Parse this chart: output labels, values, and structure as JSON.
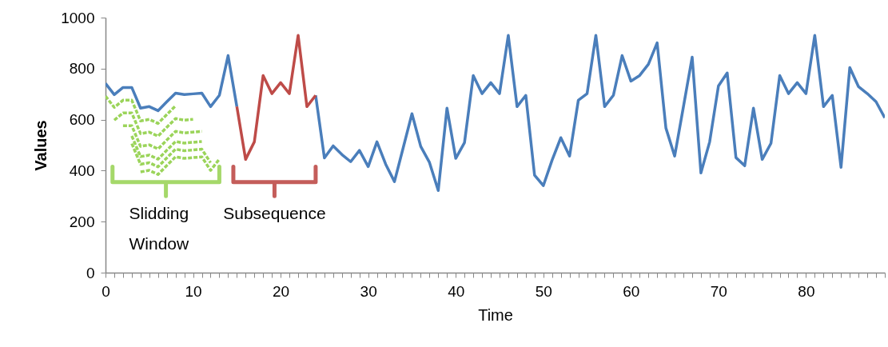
{
  "chart_data": {
    "type": "line",
    "xlabel": "Time",
    "ylabel": "Values",
    "x": [
      0,
      1,
      2,
      3,
      4,
      5,
      6,
      7,
      8,
      9,
      10,
      11,
      12,
      13,
      14,
      15,
      16,
      17,
      18,
      19,
      20,
      21,
      22,
      23,
      24,
      25,
      26,
      27,
      28,
      29,
      30,
      31,
      32,
      33,
      34,
      35,
      36,
      37,
      38,
      39,
      40,
      41,
      42,
      43,
      44,
      45,
      46,
      47,
      48,
      49,
      50,
      51,
      52,
      53,
      54,
      55,
      56,
      57,
      58,
      59,
      60,
      61,
      62,
      63,
      64,
      65,
      66,
      67,
      68,
      69,
      70,
      71,
      72,
      73,
      74,
      75,
      76,
      77,
      78,
      79,
      80,
      81,
      82,
      83,
      84,
      85,
      86,
      87,
      88,
      89
    ],
    "series": [
      {
        "color": "#4a7ebb",
        "values": [
          742,
          698,
          726,
          726,
          645,
          651,
          635,
          670,
          704,
          698,
          701,
          704,
          651,
          695,
          851,
          651,
          null,
          null,
          null,
          null,
          null,
          null,
          null,
          null,
          695,
          450,
          497,
          463,
          435,
          479,
          416,
          513,
          425,
          357,
          490,
          623,
          495,
          432,
          322,
          645,
          448,
          510,
          773,
          702,
          745,
          702,
          930,
          651,
          695,
          382,
          341,
          441,
          529,
          457,
          676,
          702,
          930,
          651,
          695,
          851,
          751,
          773,
          817,
          901,
          567,
          457,
          650,
          845,
          391,
          513,
          732,
          783,
          451,
          419,
          645,
          444,
          507,
          773,
          702,
          745,
          702,
          930,
          651,
          695,
          413,
          804,
          729,
          702,
          670,
          607
        ]
      },
      {
        "color": "#be4b48",
        "x": [
          15,
          16,
          17,
          18,
          19,
          20,
          21,
          22,
          23,
          24
        ],
        "values": [
          651,
          444,
          513,
          773,
          702,
          745,
          702,
          930,
          651,
          695
        ]
      },
      {
        "color": "#9bd45a",
        "line_style": "dashed",
        "x": [
          0,
          1,
          2,
          3,
          4,
          5,
          6,
          7,
          8
        ],
        "values": [
          692,
          648,
          676,
          676,
          595,
          601,
          585,
          620,
          654
        ]
      },
      {
        "color": "#9bd45a",
        "line_style": "dashed",
        "x": [
          1,
          2,
          3,
          4,
          5,
          6,
          7,
          8,
          9,
          10
        ],
        "values": [
          598,
          626,
          626,
          545,
          551,
          535,
          570,
          604,
          598,
          601
        ]
      },
      {
        "color": "#9bd45a",
        "line_style": "dashed",
        "x": [
          2,
          3,
          4,
          5,
          6,
          7,
          8,
          9,
          10,
          11
        ],
        "values": [
          576,
          576,
          495,
          501,
          485,
          520,
          554,
          548,
          551,
          554
        ]
      },
      {
        "color": "#9bd45a",
        "line_style": "dashed",
        "x": [
          3,
          4,
          5,
          6,
          7,
          8,
          9,
          10,
          11
        ],
        "values": [
          536,
          455,
          461,
          445,
          480,
          514,
          508,
          511,
          514
        ]
      },
      {
        "color": "#9bd45a",
        "line_style": "dashed",
        "x": [
          3,
          4,
          5,
          6,
          7,
          8,
          9,
          10,
          11,
          12
        ],
        "values": [
          506,
          425,
          431,
          415,
          450,
          484,
          478,
          481,
          484,
          431
        ]
      },
      {
        "color": "#9bd45a",
        "line_style": "dashed",
        "x": [
          4,
          5,
          6,
          7,
          8,
          9,
          10,
          11,
          12,
          13
        ],
        "values": [
          395,
          401,
          385,
          420,
          454,
          448,
          451,
          454,
          401,
          445
        ]
      }
    ],
    "annotations": [
      "Slidding Window",
      "Subsequence"
    ],
    "xlim": [
      0,
      89
    ],
    "ylim": [
      0,
      1000
    ],
    "xticks": [
      0,
      {
        "value": 1,
        "label": null
      },
      {
        "value": 2,
        "label": null
      },
      {
        "value": 3,
        "label": null
      },
      {
        "value": 4,
        "label": null
      },
      {
        "value": 5,
        "label": null
      },
      {
        "value": 6,
        "label": null
      },
      {
        "value": 7,
        "label": null
      },
      {
        "value": 8,
        "label": null
      },
      {
        "value": 9,
        "label": null
      },
      10,
      {
        "value": 11,
        "label": null
      },
      {
        "value": 12,
        "label": null
      },
      {
        "value": 13,
        "label": null
      },
      {
        "value": 14,
        "label": null
      },
      {
        "value": 15,
        "label": null
      },
      {
        "value": 16,
        "label": null
      },
      {
        "value": 17,
        "label": null
      },
      {
        "value": 18,
        "label": null
      },
      {
        "value": 19,
        "label": null
      },
      20,
      {
        "value": 21,
        "label": null
      },
      {
        "value": 22,
        "label": null
      },
      {
        "value": 23,
        "label": null
      },
      {
        "value": 24,
        "label": null
      },
      {
        "value": 25,
        "label": null
      },
      {
        "value": 26,
        "label": null
      },
      {
        "value": 27,
        "label": null
      },
      {
        "value": 28,
        "label": null
      },
      {
        "value": 29,
        "label": null
      },
      30,
      {
        "value": 31,
        "label": null
      },
      {
        "value": 32,
        "label": null
      },
      {
        "value": 33,
        "label": null
      },
      {
        "value": 34,
        "label": null
      },
      {
        "value": 35,
        "label": null
      },
      {
        "value": 36,
        "label": null
      },
      {
        "value": 37,
        "label": null
      },
      {
        "value": 38,
        "label": null
      },
      {
        "value": 39,
        "label": null
      },
      40,
      {
        "value": 41,
        "label": null
      },
      {
        "value": 42,
        "label": null
      },
      {
        "value": 43,
        "label": null
      },
      {
        "value": 44,
        "label": null
      },
      {
        "value": 45,
        "label": null
      },
      {
        "value": 46,
        "label": null
      },
      {
        "value": 47,
        "label": null
      },
      {
        "value": 48,
        "label": null
      },
      {
        "value": 49,
        "label": null
      },
      50,
      {
        "value": 51,
        "label": null
      },
      {
        "value": 52,
        "label": null
      },
      {
        "value": 53,
        "label": null
      },
      {
        "value": 54,
        "label": null
      },
      {
        "value": 55,
        "label": null
      },
      {
        "value": 56,
        "label": null
      },
      {
        "value": 57,
        "label": null
      },
      {
        "value": 58,
        "label": null
      },
      {
        "value": 59,
        "label": null
      },
      60,
      {
        "value": 61,
        "label": null
      },
      {
        "value": 62,
        "label": null
      },
      {
        "value": 63,
        "label": null
      },
      {
        "value": 64,
        "label": null
      },
      {
        "value": 65,
        "label": null
      },
      {
        "value": 66,
        "label": null
      },
      {
        "value": 67,
        "label": null
      },
      {
        "value": 68,
        "label": null
      },
      {
        "value": 69,
        "label": null
      },
      70,
      {
        "value": 71,
        "label": null
      },
      {
        "value": 72,
        "label": null
      },
      {
        "value": 73,
        "label": null
      },
      {
        "value": 74,
        "label": null
      },
      {
        "value": 75,
        "label": null
      },
      {
        "value": 76,
        "label": null
      },
      {
        "value": 77,
        "label": null
      },
      {
        "value": 78,
        "label": null
      },
      {
        "value": 79,
        "label": null
      },
      80,
      {
        "value": 81,
        "label": null
      },
      {
        "value": 82,
        "label": null
      },
      {
        "value": 83,
        "label": null
      },
      {
        "value": 84,
        "label": null
      },
      {
        "value": 85,
        "label": null
      },
      {
        "value": 86,
        "label": null
      },
      {
        "value": 87,
        "label": null
      },
      {
        "value": 88,
        "label": null
      },
      {
        "value": 89,
        "label": null
      }
    ],
    "yticks": [
      0,
      200,
      400,
      600,
      800,
      1000
    ],
    "grid": false,
    "marker": "none"
  }
}
